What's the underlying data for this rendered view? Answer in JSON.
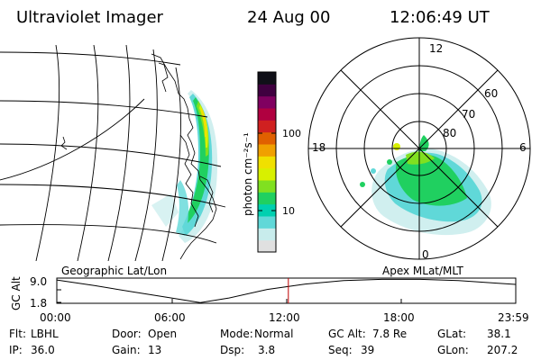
{
  "header": {
    "title": "Ultraviolet Imager",
    "date": "24 Aug 00",
    "time": "12:06:49 UT"
  },
  "colorbar": {
    "unit_label": "photon cm⁻²s⁻¹",
    "ticks": [
      "100",
      "10"
    ],
    "colors": [
      "#e0e0e0",
      "#c8ecec",
      "#60d8d8",
      "#00d0b0",
      "#20d060",
      "#80e020",
      "#d8f000",
      "#f0e000",
      "#f0a000",
      "#e06000",
      "#d02020",
      "#b00040",
      "#800060",
      "#400040",
      "#101018"
    ]
  },
  "polar_plot": {
    "mlt_labels": [
      "12",
      "18",
      "6",
      "0"
    ],
    "lat_labels": [
      "60",
      "70",
      "80"
    ]
  },
  "timeline": {
    "left_label": "Geographic Lat/Lon",
    "right_label": "Apex MLat/MLT",
    "axis_title": "GC Alt",
    "y_ticks": [
      "9.0",
      "1.8"
    ],
    "x_ticks": [
      "00:00",
      "06:00",
      "12:00",
      "18:00",
      "23:59"
    ],
    "altitude_curve": {
      "x_hours": [
        0,
        2,
        4,
        6,
        7.5,
        9,
        11,
        13,
        15,
        17,
        19,
        21,
        23,
        23.98
      ],
      "alt_re": [
        9.0,
        7.2,
        5.2,
        3.3,
        1.8,
        3.3,
        6.0,
        7.7,
        8.8,
        9.2,
        9.2,
        8.8,
        8.0,
        7.6
      ]
    },
    "current_hour": 12.11
  },
  "info": {
    "filter_label": "Flt:",
    "filter_value": "LBHL",
    "door_label": "Door:",
    "door_value": "Open",
    "mode_label": "Mode:",
    "mode_value": "Normal",
    "gc_alt_label": "GC Alt:",
    "gc_alt_value": "7.8 Re",
    "glat_label": "GLat:",
    "glat_value": "38.1",
    "ip_label": "IP:",
    "ip_value": "36.0",
    "gain_label": "Gain:",
    "gain_value": "13",
    "dsp_label": "Dsp:",
    "dsp_value": "3.8",
    "seq_label": "Seq:",
    "seq_value": "39",
    "glon_label": "GLon:",
    "glon_value": "207.2"
  }
}
